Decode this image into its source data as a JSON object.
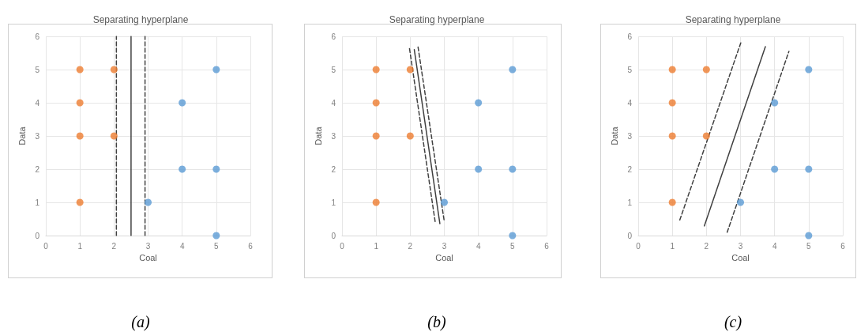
{
  "chart_data": [
    {
      "type": "scatter",
      "title": "Separating hyperplane",
      "xlabel": "Coal",
      "ylabel": "Data",
      "annotations": [
        "(a)"
      ],
      "xlim": [
        0,
        6
      ],
      "ylim": [
        0,
        6
      ],
      "xticks": [
        0,
        1,
        2,
        3,
        4,
        5,
        6
      ],
      "yticks": [
        0,
        1,
        2,
        3,
        4,
        5,
        6
      ],
      "grid": true,
      "marker": "circle",
      "series": [
        {
          "color": "#ed7d31",
          "x": [
            1,
            1,
            1,
            1,
            2,
            2
          ],
          "values": [
            5,
            4,
            3,
            1,
            5,
            3
          ]
        },
        {
          "color": "#5b9bd5",
          "x": [
            3,
            4,
            4,
            5,
            5,
            5
          ],
          "values": [
            1,
            4,
            2,
            5,
            2,
            0
          ]
        },
        {
          "type": "line",
          "marker": "none",
          "line_style": "solid",
          "color": "#404040",
          "x": [
            2.5,
            2.5
          ],
          "values": [
            0,
            6
          ]
        },
        {
          "type": "line",
          "marker": "none",
          "line_style": "dashed",
          "color": "#404040",
          "x": [
            2.07,
            2.07
          ],
          "values": [
            0,
            6
          ]
        },
        {
          "type": "line",
          "marker": "none",
          "line_style": "dashed",
          "color": "#404040",
          "x": [
            2.91,
            2.91
          ],
          "values": [
            0,
            6
          ]
        }
      ]
    },
    {
      "type": "scatter",
      "title": "Separating hyperplane",
      "xlabel": "Coal",
      "ylabel": "Data",
      "annotations": [
        "(b)"
      ],
      "xlim": [
        0,
        6
      ],
      "ylim": [
        0,
        6
      ],
      "xticks": [
        0,
        1,
        2,
        3,
        4,
        5,
        6
      ],
      "yticks": [
        0,
        1,
        2,
        3,
        4,
        5,
        6
      ],
      "grid": true,
      "marker": "circle",
      "series": [
        {
          "color": "#ed7d31",
          "x": [
            1,
            1,
            1,
            1,
            2,
            2
          ],
          "values": [
            5,
            4,
            3,
            1,
            5,
            3
          ]
        },
        {
          "color": "#5b9bd5",
          "x": [
            3,
            4,
            4,
            5,
            5,
            5
          ],
          "values": [
            1,
            4,
            2,
            5,
            2,
            0
          ]
        },
        {
          "type": "line",
          "marker": "none",
          "line_style": "solid",
          "color": "#404040",
          "x": [
            2.12,
            2.87
          ],
          "values": [
            5.6,
            0.36
          ]
        },
        {
          "type": "line",
          "marker": "none",
          "line_style": "dashed",
          "color": "#404040",
          "x": [
            1.98,
            2.74
          ],
          "values": [
            5.63,
            0.36
          ]
        },
        {
          "type": "line",
          "marker": "none",
          "line_style": "dashed",
          "color": "#404040",
          "x": [
            2.23,
            3.0
          ],
          "values": [
            5.68,
            0.42
          ]
        }
      ]
    },
    {
      "type": "scatter",
      "title": "Separating hyperplane",
      "xlabel": "Coal",
      "ylabel": "Data",
      "annotations": [
        "(c)"
      ],
      "xlim": [
        0,
        6
      ],
      "ylim": [
        0,
        6
      ],
      "xticks": [
        0,
        1,
        2,
        3,
        4,
        5,
        6
      ],
      "yticks": [
        0,
        1,
        2,
        3,
        4,
        5,
        6
      ],
      "grid": true,
      "marker": "circle",
      "series": [
        {
          "color": "#ed7d31",
          "x": [
            1,
            1,
            1,
            1,
            2,
            2
          ],
          "values": [
            5,
            4,
            3,
            1,
            5,
            3
          ]
        },
        {
          "color": "#5b9bd5",
          "x": [
            3,
            4,
            4,
            5,
            5,
            5
          ],
          "values": [
            1,
            4,
            2,
            5,
            2,
            0
          ]
        },
        {
          "type": "line",
          "marker": "none",
          "line_style": "solid",
          "color": "#404040",
          "x": [
            1.94,
            3.73
          ],
          "values": [
            0.29,
            5.69
          ]
        },
        {
          "type": "line",
          "marker": "none",
          "line_style": "dashed",
          "color": "#404040",
          "x": [
            1.22,
            3.03
          ],
          "values": [
            0.47,
            5.87
          ]
        },
        {
          "type": "line",
          "marker": "none",
          "line_style": "dashed",
          "color": "#404040",
          "x": [
            2.61,
            4.42
          ],
          "values": [
            0.1,
            5.55
          ]
        }
      ]
    }
  ]
}
